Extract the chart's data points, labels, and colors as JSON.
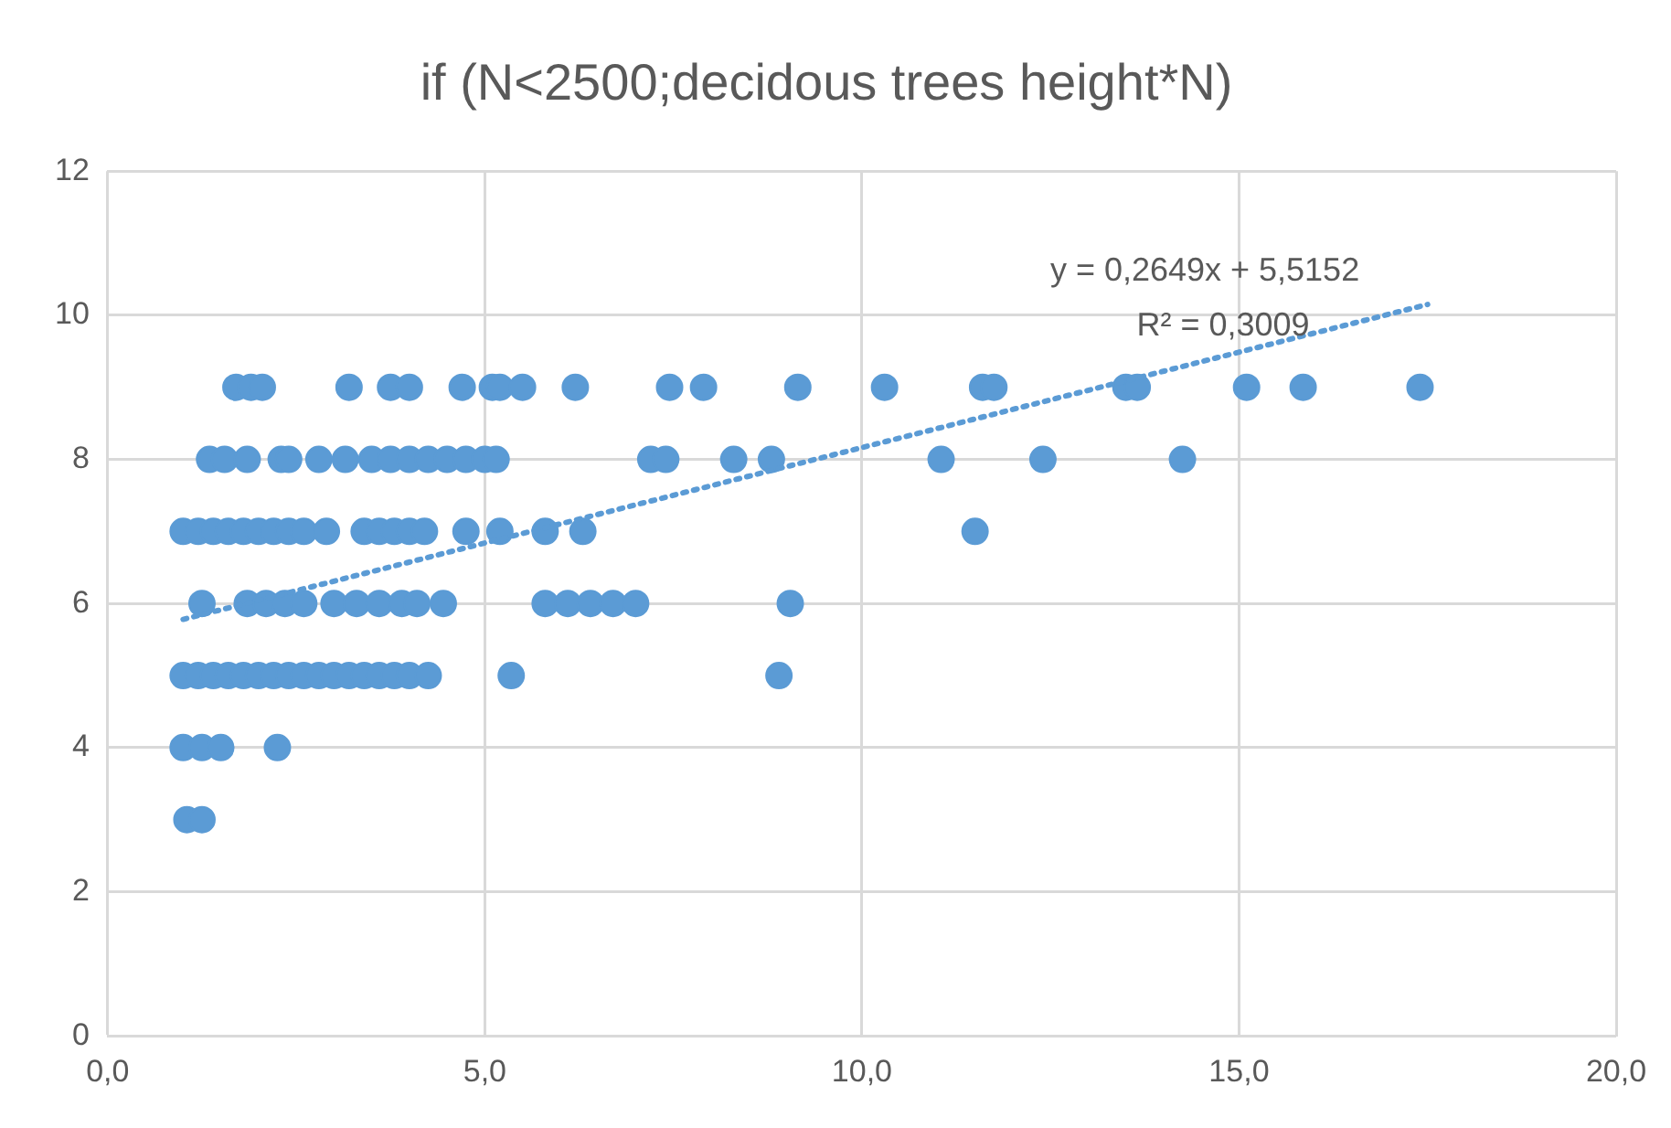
{
  "chart_data": {
    "type": "scatter",
    "title": "if (N<2500;decidous trees height*N)",
    "xlim": [
      0,
      20
    ],
    "xticks": [
      {
        "value": 0,
        "label": "0,0"
      },
      {
        "value": 5,
        "label": "5,0"
      },
      {
        "value": 10,
        "label": "10,0"
      },
      {
        "value": 15,
        "label": "15,0"
      },
      {
        "value": 20,
        "label": "20,0"
      }
    ],
    "ylim": [
      0,
      12
    ],
    "yticks": [
      0,
      2,
      4,
      6,
      8,
      10,
      12
    ],
    "grid": true,
    "legend": false,
    "marker": "circle",
    "annotations": [
      "y = 0,2649x + 5,5152",
      "R² = 0,3009"
    ],
    "series": [
      {
        "color": "#5b9bd5",
        "x": [
          1.7,
          1.9,
          2.05,
          3.2,
          3.75,
          4.0,
          4.7,
          5.1,
          5.2,
          5.5,
          6.2,
          7.45,
          7.9,
          9.15,
          10.3,
          11.6,
          11.75,
          13.5,
          13.65,
          15.1,
          15.85,
          17.4,
          1.35,
          1.55,
          1.85,
          2.3,
          2.4,
          2.8,
          3.15,
          3.5,
          3.75,
          4.0,
          4.25,
          4.5,
          4.75,
          5.0,
          5.15,
          7.2,
          7.4,
          8.3,
          8.8,
          11.05,
          12.4,
          14.25,
          1.0,
          1.2,
          1.4,
          1.6,
          1.8,
          2.0,
          2.2,
          2.4,
          2.6,
          2.9,
          3.4,
          3.6,
          3.8,
          4.0,
          4.2,
          4.75,
          5.2,
          5.8,
          6.3,
          11.5,
          1.25,
          1.85,
          2.1,
          2.35,
          2.6,
          3.0,
          3.3,
          3.6,
          3.9,
          4.1,
          4.45,
          5.8,
          6.1,
          6.4,
          6.7,
          7.0,
          9.05,
          1.0,
          1.2,
          1.4,
          1.6,
          1.8,
          2.0,
          2.2,
          2.4,
          2.6,
          2.8,
          3.0,
          3.2,
          3.4,
          3.6,
          3.8,
          4.0,
          4.25,
          5.35,
          8.9,
          1.0,
          1.25,
          1.5,
          2.25,
          1.05,
          1.25
        ],
        "values": [
          9,
          9,
          9,
          9,
          9,
          9,
          9,
          9,
          9,
          9,
          9,
          9,
          9,
          9,
          9,
          9,
          9,
          9,
          9,
          9,
          9,
          9,
          8,
          8,
          8,
          8,
          8,
          8,
          8,
          8,
          8,
          8,
          8,
          8,
          8,
          8,
          8,
          8,
          8,
          8,
          8,
          8,
          8,
          8,
          7,
          7,
          7,
          7,
          7,
          7,
          7,
          7,
          7,
          7,
          7,
          7,
          7,
          7,
          7,
          7,
          7,
          7,
          7,
          7,
          6,
          6,
          6,
          6,
          6,
          6,
          6,
          6,
          6,
          6,
          6,
          6,
          6,
          6,
          6,
          6,
          6,
          5,
          5,
          5,
          5,
          5,
          5,
          5,
          5,
          5,
          5,
          5,
          5,
          5,
          5,
          5,
          5,
          5,
          5,
          5,
          4,
          4,
          4,
          4,
          3,
          3
        ]
      },
      {
        "type": "line",
        "color": "#5b9bd5",
        "marker": "none",
        "line_style": "dotted",
        "x": [
          1.0,
          17.5
        ],
        "values": [
          5.78,
          10.15
        ]
      }
    ]
  }
}
